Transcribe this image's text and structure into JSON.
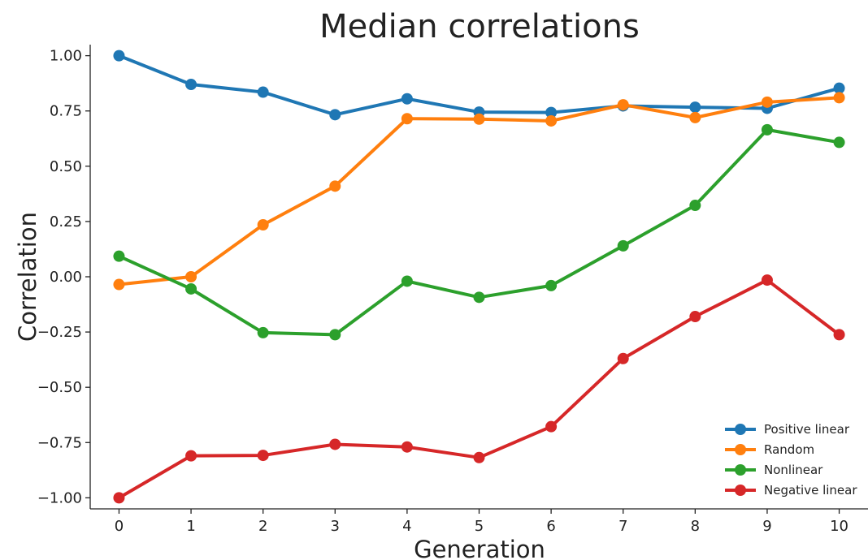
{
  "chart_data": {
    "type": "line",
    "title": "Median correlations",
    "xlabel": "Generation",
    "ylabel": "Correlation",
    "x": [
      0,
      1,
      2,
      3,
      4,
      5,
      6,
      7,
      8,
      9,
      10
    ],
    "xticks": [
      "0",
      "1",
      "2",
      "3",
      "4",
      "5",
      "6",
      "7",
      "8",
      "9",
      "10"
    ],
    "yticks": [
      1.0,
      0.75,
      0.5,
      0.25,
      0.0,
      -0.25,
      -0.5,
      -0.75,
      -1.0
    ],
    "ytick_labels": [
      "1.00",
      "0.75",
      "0.50",
      "0.25",
      "0.00",
      "−0.25",
      "−0.50",
      "−0.75",
      "−1.00"
    ],
    "xlim": [
      -0.4,
      10.4
    ],
    "ylim": [
      -1.05,
      1.05
    ],
    "grid": false,
    "legend_position": "bottom-right",
    "series": [
      {
        "name": "Positive linear",
        "color": "#1f77b4",
        "values": [
          1.0,
          0.87,
          0.835,
          0.733,
          0.805,
          0.745,
          0.743,
          0.773,
          0.767,
          0.762,
          0.853
        ]
      },
      {
        "name": "Random",
        "color": "#ff7f0e",
        "values": [
          -0.035,
          0.0,
          0.235,
          0.41,
          0.715,
          0.713,
          0.705,
          0.778,
          0.72,
          0.79,
          0.81
        ]
      },
      {
        "name": "Nonlinear",
        "color": "#2ca02c",
        "values": [
          0.093,
          -0.055,
          -0.253,
          -0.262,
          -0.02,
          -0.093,
          -0.04,
          0.14,
          0.323,
          0.665,
          0.608
        ]
      },
      {
        "name": "Negative linear",
        "color": "#d62728",
        "values": [
          -1.0,
          -0.81,
          -0.808,
          -0.758,
          -0.77,
          -0.818,
          -0.678,
          -0.37,
          -0.18,
          -0.015,
          -0.262
        ]
      }
    ]
  }
}
